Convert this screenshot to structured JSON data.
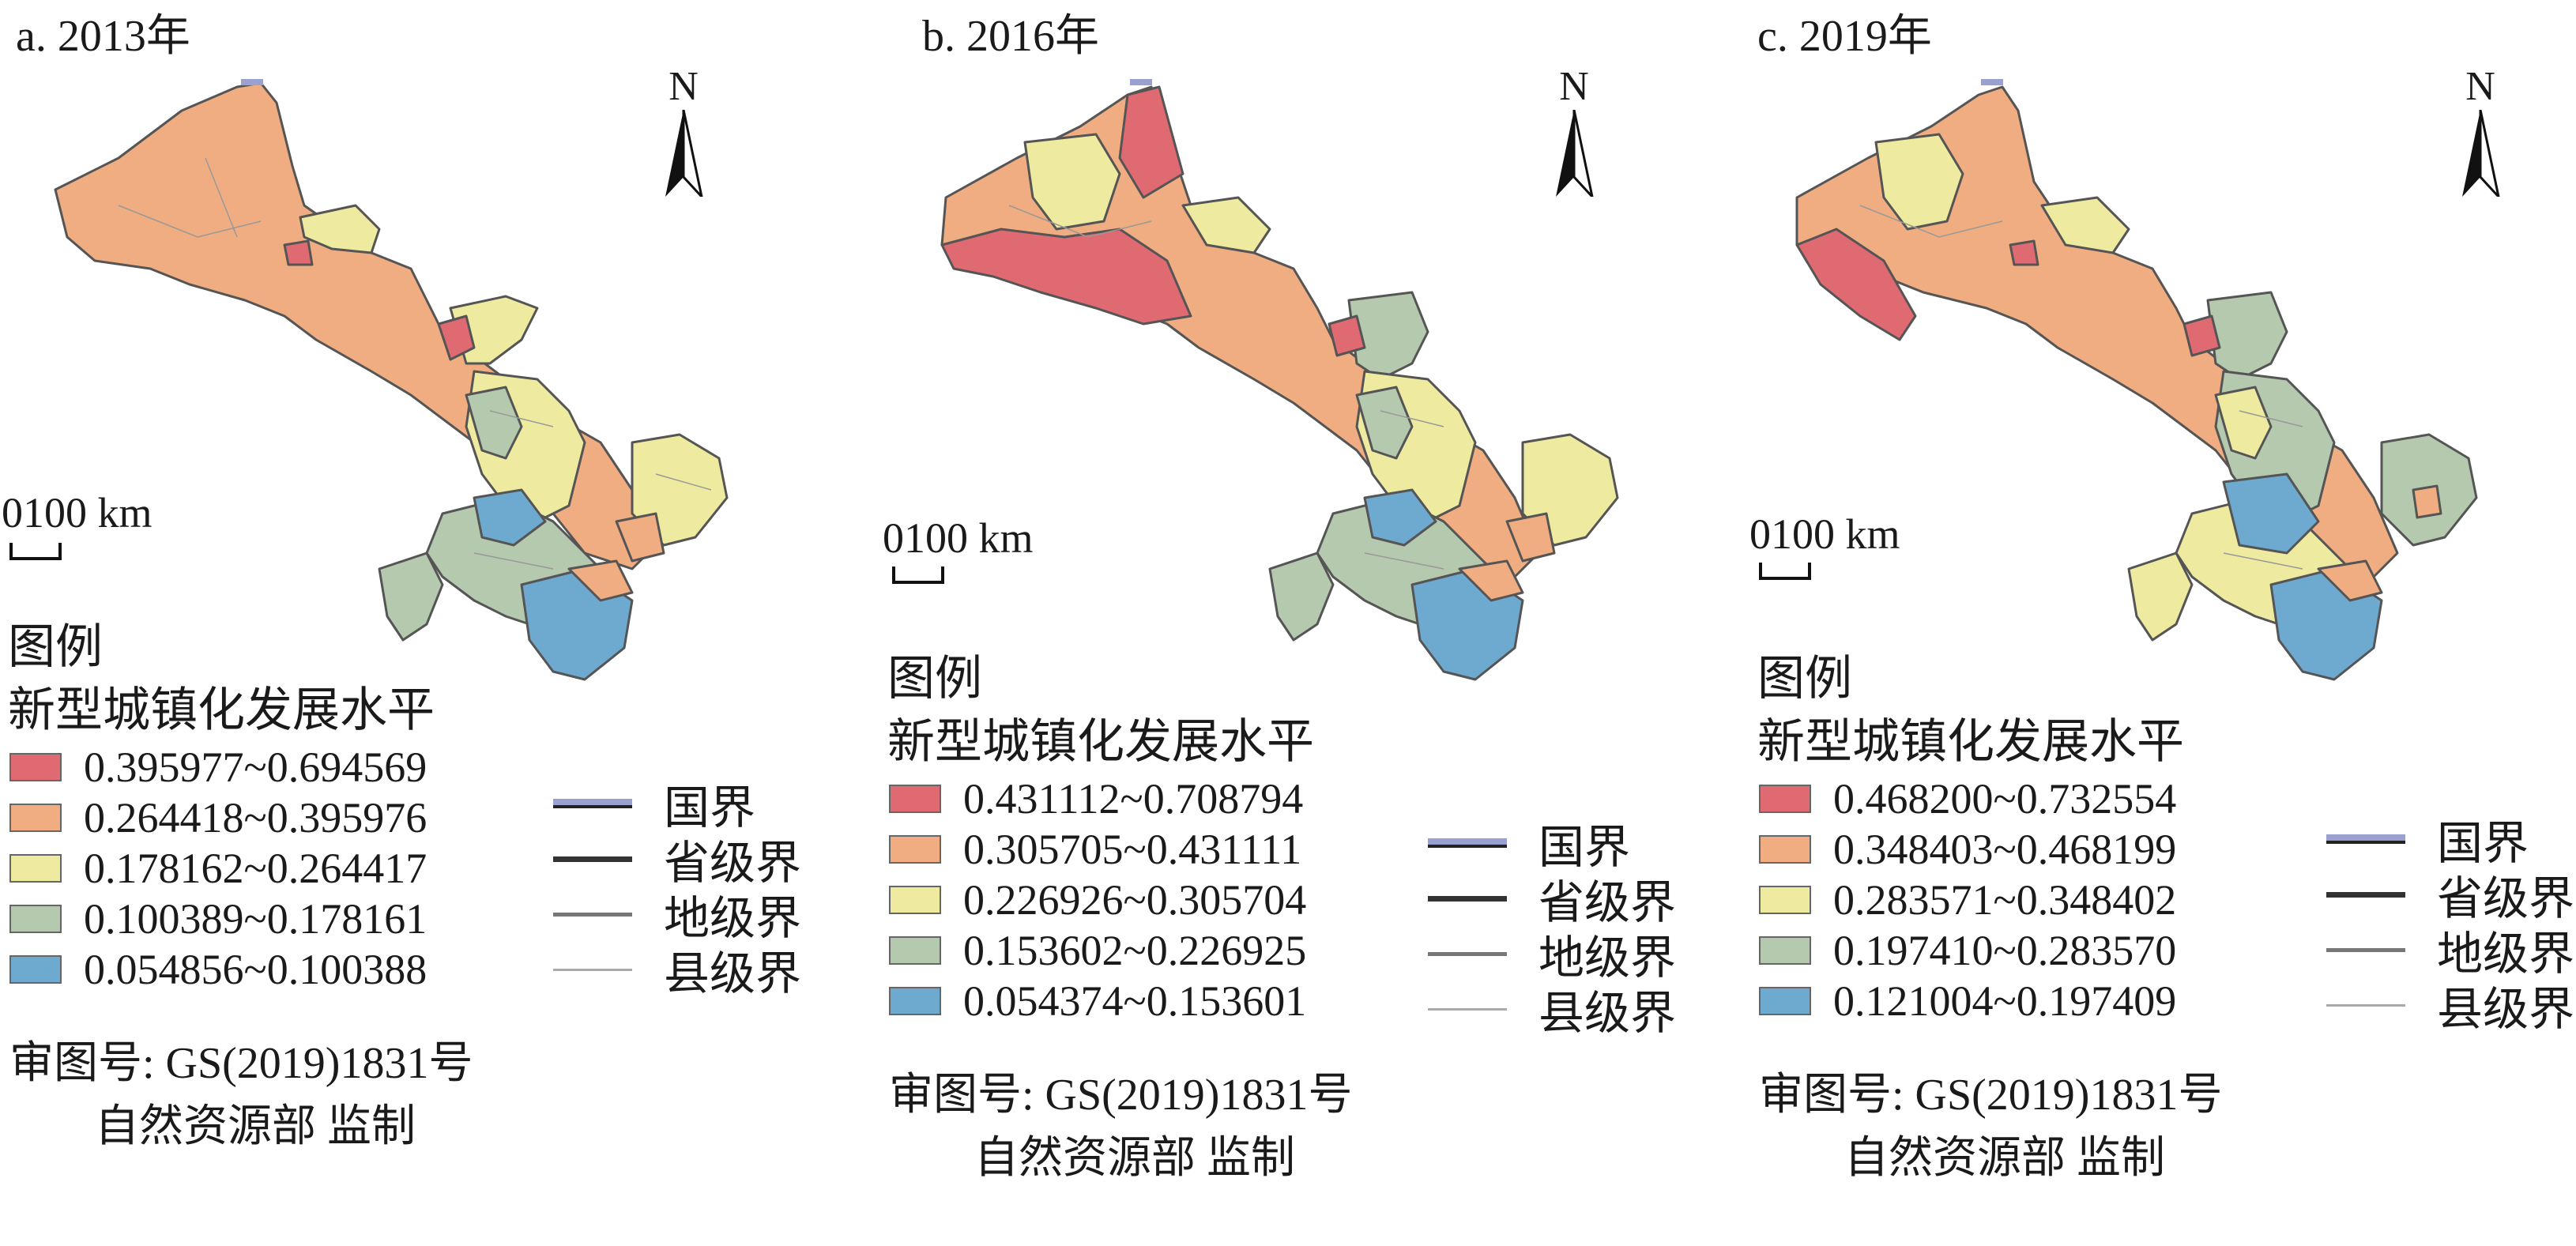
{
  "panels": [
    {
      "title": "a. 2013年",
      "north_label": "N",
      "scale_label": "0100 km",
      "legend_heading": "图例",
      "legend_subtitle": "新型城镇化发展水平",
      "classes": [
        {
          "label": "0.395977~0.694569",
          "color": "#e06a72"
        },
        {
          "label": "0.264418~0.395976",
          "color": "#f0ad82"
        },
        {
          "label": "0.178162~0.264417",
          "color": "#eeeba0"
        },
        {
          "label": "0.100389~0.178161",
          "color": "#b5c9ae"
        },
        {
          "label": "0.054856~0.100388",
          "color": "#6ea9cf"
        }
      ],
      "boundaries": [
        "国界",
        "省级界",
        "地级界",
        "县级界"
      ],
      "approval": "审图号: GS(2019)1831号",
      "supervision": "自然资源部 监制"
    },
    {
      "title": "b. 2016年",
      "north_label": "N",
      "scale_label": "0100 km",
      "legend_heading": "图例",
      "legend_subtitle": "新型城镇化发展水平",
      "classes": [
        {
          "label": "0.431112~0.708794",
          "color": "#e06a72"
        },
        {
          "label": "0.305705~0.431111",
          "color": "#f0ad82"
        },
        {
          "label": "0.226926~0.305704",
          "color": "#eeeba0"
        },
        {
          "label": "0.153602~0.226925",
          "color": "#b5c9ae"
        },
        {
          "label": "0.054374~0.153601",
          "color": "#6ea9cf"
        }
      ],
      "boundaries": [
        "国界",
        "省级界",
        "地级界",
        "县级界"
      ],
      "approval": "审图号: GS(2019)1831号",
      "supervision": "自然资源部 监制"
    },
    {
      "title": "c. 2019年",
      "north_label": "N",
      "scale_label": "0100 km",
      "legend_heading": "图例",
      "legend_subtitle": "新型城镇化发展水平",
      "classes": [
        {
          "label": "0.468200~0.732554",
          "color": "#e06a72"
        },
        {
          "label": "0.348403~0.468199",
          "color": "#f0ad82"
        },
        {
          "label": "0.283571~0.348402",
          "color": "#eeeba0"
        },
        {
          "label": "0.197410~0.283570",
          "color": "#b5c9ae"
        },
        {
          "label": "0.121004~0.197409",
          "color": "#6ea9cf"
        }
      ],
      "boundaries": [
        "国界",
        "省级界",
        "地级界",
        "县级界"
      ],
      "approval": "审图号: GS(2019)1831号",
      "supervision": "自然资源部 监制"
    }
  ],
  "boundary_colors": {
    "national": "#9aa0d0",
    "provincial": "#333333",
    "prefectural": "#777777",
    "county": "#aaaaaa"
  }
}
